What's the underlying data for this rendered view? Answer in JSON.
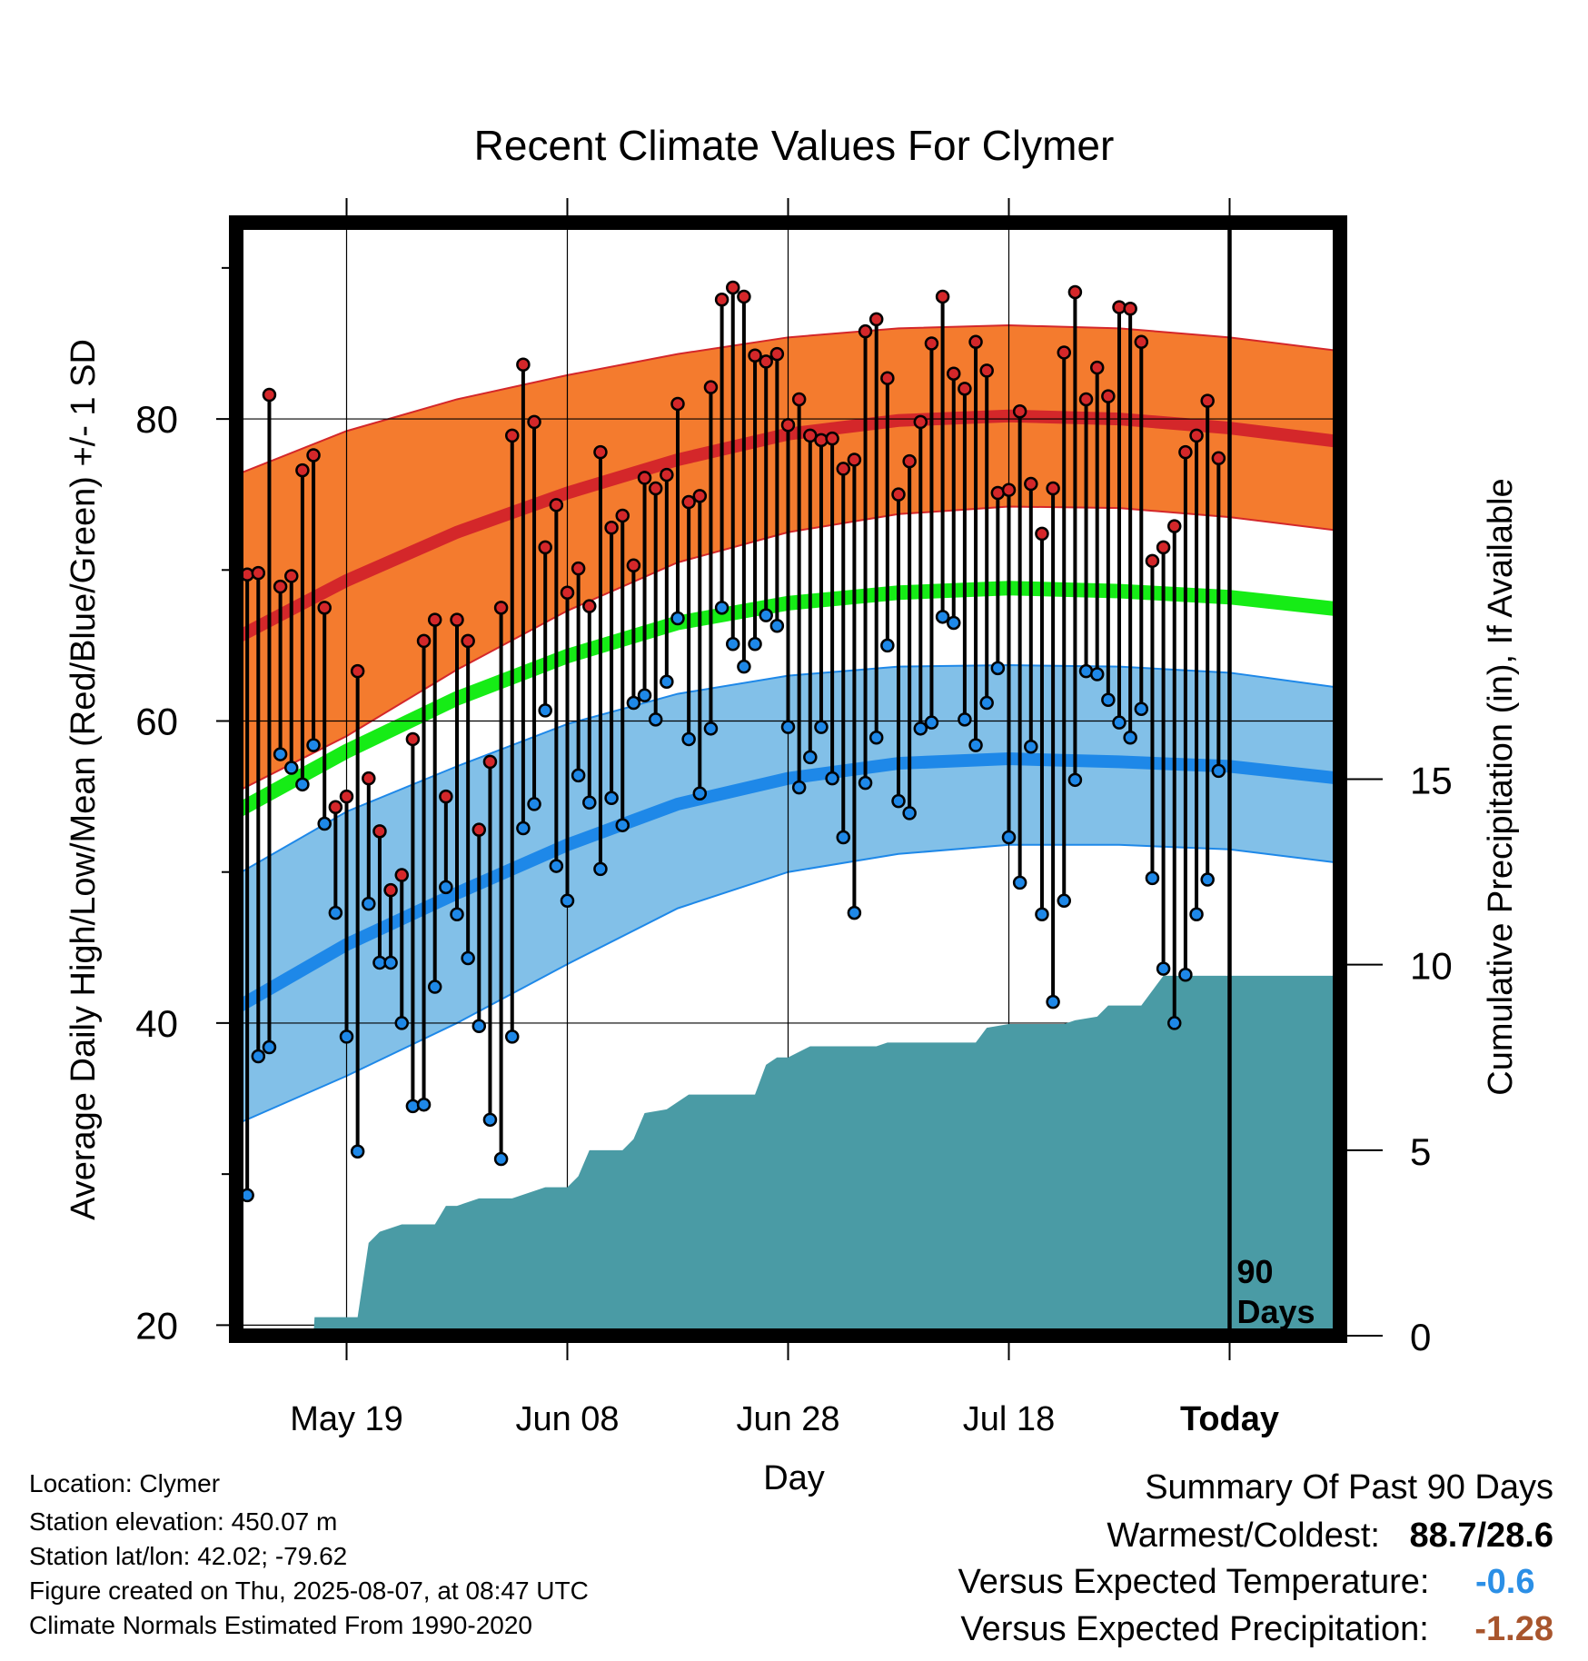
{
  "colors": {
    "high_band": "#f47b2e",
    "high_mean": "#d4272a",
    "low_band": "#82c0e8",
    "low_mean": "#1e88e8",
    "mean_line": "#16ec16",
    "precip": "#4a9ba5",
    "below_expected": "#2b8fe6",
    "precip_deficit": "#a8552d"
  },
  "chart_data": {
    "type": "line",
    "title": "Recent Climate Values For Clymer",
    "xlabel": "Day",
    "ylabel": "Average Daily High/Low/Mean (Red/Blue/Green) +/- 1 SD",
    "y2label": "Cumulative Precipitation (in), If Available",
    "x_tick_labels": [
      "May 19",
      "Jun 08",
      "Jun 28",
      "Jul 18",
      "Today"
    ],
    "y_ticks": [
      20,
      40,
      60,
      80
    ],
    "y_range": [
      19.3,
      93
    ],
    "y2_ticks": [
      0,
      5,
      10,
      15
    ],
    "y2_range": [
      0,
      30
    ],
    "day_range": [
      0,
      100
    ],
    "x_tick_days": [
      10,
      30,
      50,
      70,
      90
    ],
    "today_day": 90,
    "today_label_line1": "90",
    "today_label_line2": "Days",
    "normals": {
      "days": [
        0,
        10,
        20,
        30,
        40,
        50,
        60,
        70,
        80,
        90,
        100
      ],
      "high_mean": [
        65.5,
        69.3,
        72.5,
        75.1,
        77.3,
        79.0,
        79.9,
        80.2,
        80.0,
        79.4,
        78.5
      ],
      "high_upper": [
        76.3,
        79.2,
        81.3,
        82.9,
        84.3,
        85.4,
        86.0,
        86.2,
        86.0,
        85.4,
        84.5
      ],
      "high_lower": [
        55.3,
        59.0,
        63.4,
        67.3,
        70.5,
        72.5,
        73.7,
        74.2,
        74.1,
        73.5,
        72.6
      ],
      "mean": [
        54.0,
        58.0,
        61.5,
        64.3,
        66.5,
        67.8,
        68.5,
        68.8,
        68.6,
        68.2,
        67.4
      ],
      "low_mean": [
        41.0,
        45.2,
        48.6,
        51.8,
        54.5,
        56.2,
        57.2,
        57.5,
        57.3,
        57.0,
        56.2
      ],
      "low_upper": [
        49.8,
        54.0,
        57.0,
        59.8,
        61.8,
        63.0,
        63.6,
        63.7,
        63.6,
        63.2,
        62.2
      ],
      "low_lower": [
        33.3,
        36.5,
        40.0,
        43.9,
        47.6,
        50.0,
        51.2,
        51.8,
        51.8,
        51.5,
        50.6
      ]
    },
    "daily_highs": [
      55.1,
      69.7,
      69.8,
      81.6,
      68.9,
      69.6,
      76.6,
      77.6,
      67.5,
      54.3,
      55.0,
      63.3,
      56.2,
      52.7,
      48.8,
      49.8,
      58.8,
      65.3,
      66.7,
      55.0,
      66.7,
      65.3,
      52.8,
      57.3,
      67.5,
      78.9,
      83.6,
      79.8,
      71.5,
      74.3,
      68.5,
      70.1,
      67.6,
      77.8,
      72.8,
      73.6,
      70.3,
      76.1,
      75.4,
      76.3,
      81.0,
      74.5,
      74.9,
      82.1,
      87.9,
      88.7,
      88.1,
      84.2,
      83.8,
      84.3,
      79.6,
      81.3,
      78.9,
      78.6,
      78.7,
      76.7,
      77.3,
      85.8,
      86.6,
      82.7,
      75.0,
      77.2,
      79.8,
      85.0,
      88.1,
      83.0,
      82.0,
      85.1,
      83.2,
      75.1,
      75.3,
      80.5,
      75.7,
      72.4,
      75.4,
      84.4,
      88.4,
      81.3,
      83.4,
      81.5,
      87.4,
      87.3,
      85.1,
      70.6,
      71.5,
      72.9,
      77.8,
      78.9,
      81.2,
      77.4
    ],
    "daily_lows": [
      32.9,
      28.6,
      37.8,
      38.4,
      57.8,
      56.9,
      55.8,
      58.4,
      53.2,
      47.3,
      39.1,
      31.5,
      47.9,
      44.0,
      44.0,
      40.0,
      34.5,
      34.6,
      42.4,
      49.0,
      47.2,
      44.3,
      39.8,
      33.6,
      31.0,
      39.1,
      52.9,
      54.5,
      60.7,
      50.4,
      48.1,
      56.4,
      54.6,
      50.2,
      54.9,
      53.1,
      61.2,
      61.7,
      60.1,
      62.6,
      66.8,
      58.8,
      55.2,
      59.5,
      67.5,
      65.1,
      63.6,
      65.1,
      67.0,
      66.3,
      59.6,
      55.6,
      57.6,
      59.6,
      56.2,
      52.3,
      47.3,
      55.9,
      58.9,
      65.0,
      54.7,
      53.9,
      59.5,
      59.9,
      66.9,
      66.5,
      60.1,
      58.4,
      61.2,
      63.5,
      52.3,
      49.3,
      58.3,
      47.2,
      41.4,
      48.1,
      56.1,
      63.3,
      63.1,
      61.4,
      59.9,
      58.9,
      60.8,
      49.6,
      43.6,
      40.0,
      43.2,
      47.2,
      49.5,
      56.7
    ],
    "cumulative_precip": {
      "days": [
        0,
        7,
        7.1,
        10,
        11,
        12,
        13,
        15,
        18,
        19,
        20,
        22,
        23,
        25,
        28,
        30,
        31,
        32,
        35,
        36,
        37,
        39,
        41,
        42,
        43,
        47,
        48,
        49,
        50,
        52,
        53,
        55,
        58,
        59,
        61,
        67,
        68,
        70,
        74,
        75,
        76,
        78,
        79,
        82,
        83,
        84,
        100
      ],
      "values": [
        0,
        0,
        0.5,
        0.5,
        0.5,
        2.5,
        2.8,
        3.0,
        3.0,
        3.5,
        3.5,
        3.7,
        3.7,
        3.7,
        4.0,
        4.0,
        4.3,
        5.0,
        5.0,
        5.3,
        6.0,
        6.1,
        6.5,
        6.5,
        6.5,
        6.5,
        7.3,
        7.5,
        7.5,
        7.8,
        7.8,
        7.8,
        7.8,
        7.9,
        7.9,
        7.9,
        8.3,
        8.4,
        8.4,
        8.4,
        8.5,
        8.6,
        8.9,
        8.9,
        9.3,
        9.7,
        9.7
      ]
    }
  },
  "info": {
    "location": "Location: Clymer",
    "elevation": "Station elevation: 450.07 m",
    "latlon": "Station lat/lon: 42.02; -79.62",
    "created": "Figure created on Thu, 2025-08-07, at 08:47 UTC",
    "normals": "Climate Normals Estimated From 1990-2020"
  },
  "summary": {
    "title": "Summary Of Past 90 Days",
    "warmest_label": "Warmest/Coldest:",
    "warmest_value": "88.7/28.6",
    "temp_label": "Versus Expected Temperature:",
    "temp_value": "-0.6",
    "precip_label": "Versus Expected Precipitation:",
    "precip_value": "-1.28"
  }
}
